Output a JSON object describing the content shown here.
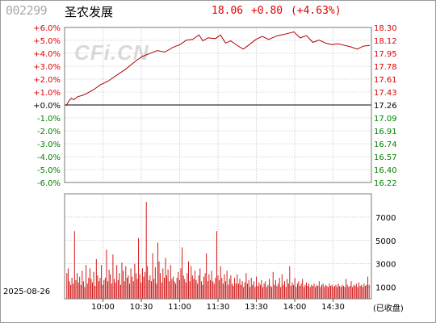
{
  "header": {
    "code": "002299",
    "name": "圣农发展",
    "price": "18.06",
    "change": "+0.80",
    "change_pct": "(+4.63%)"
  },
  "watermark": "CFi.CN",
  "footer": {
    "date": "2025-08-26",
    "closed_label": "(已收盘)"
  },
  "colors": {
    "up": "#e00000",
    "down": "#008000",
    "neutral": "#000000",
    "grid": "#b4b4b4",
    "price_line": "#b00000",
    "volume_bar": "#cc0000"
  },
  "chart_data": [
    {
      "type": "line",
      "title": "",
      "prev_close": 17.26,
      "ylim": [
        16.22,
        18.3
      ],
      "x_ticks": [
        "10:00",
        "10:30",
        "11:00",
        "11:30",
        "13:30",
        "14:00",
        "14:30"
      ],
      "left_ticks": [
        "+6.0%",
        "+5.0%",
        "+4.0%",
        "+3.0%",
        "+2.0%",
        "+1.0%",
        "+0.0%",
        "-1.0%",
        "-2.0%",
        "-3.0%",
        "-4.0%",
        "-5.0%",
        "-6.0%"
      ],
      "right_ticks": [
        "18.30",
        "18.12",
        "17.95",
        "17.78",
        "17.61",
        "17.43",
        "17.26",
        "17.09",
        "16.91",
        "16.74",
        "16.57",
        "16.40",
        "16.22"
      ],
      "grid": true,
      "series": [
        {
          "x": [
            0,
            2,
            4,
            6,
            9,
            13,
            17,
            22,
            27,
            33,
            40,
            47,
            55,
            60,
            66,
            72,
            78,
            84,
            90,
            95,
            100,
            105,
            108,
            112,
            118,
            122,
            126,
            130,
            136,
            140,
            144,
            150,
            155,
            160,
            167,
            173,
            180,
            185,
            190,
            195,
            200,
            205,
            210,
            215,
            220,
            225,
            230,
            235,
            240
          ],
          "values": [
            17.25,
            17.31,
            17.35,
            17.33,
            17.37,
            17.39,
            17.42,
            17.47,
            17.53,
            17.58,
            17.66,
            17.74,
            17.85,
            17.91,
            17.95,
            17.99,
            17.97,
            18.03,
            18.07,
            18.13,
            18.14,
            18.2,
            18.12,
            18.16,
            18.15,
            18.2,
            18.09,
            18.12,
            18.05,
            18.01,
            18.06,
            18.14,
            18.18,
            18.14,
            18.19,
            18.21,
            18.24,
            18.16,
            18.19,
            18.1,
            18.13,
            18.09,
            18.07,
            18.08,
            18.06,
            18.04,
            18.01,
            18.05,
            18.06
          ]
        }
      ]
    },
    {
      "type": "bar",
      "title": "",
      "ylim": [
        0,
        9000
      ],
      "y_ticks": [
        "7000",
        "5000",
        "3000",
        "1000"
      ],
      "y_tick_values": [
        7000,
        5000,
        3000,
        1000
      ],
      "grid": true,
      "series": [
        {
          "values": [
            2200,
            2600,
            1500,
            1200,
            1800,
            1300,
            5800,
            1600,
            2200,
            1400,
            1900,
            1200,
            2400,
            1500,
            1000,
            2900,
            1300,
            1800,
            2600,
            1700,
            1400,
            2300,
            1100,
            3400,
            2000,
            1500,
            1800,
            2900,
            1200,
            1600,
            1800,
            4200,
            1500,
            2500,
            2100,
            1300,
            3800,
            1700,
            1400,
            2900,
            1600,
            2200,
            1200,
            3100,
            2400,
            1500,
            2800,
            1800,
            2000,
            1300,
            2600,
            1900,
            1500,
            3000,
            2200,
            1700,
            5200,
            2100,
            1400,
            2600,
            1900,
            2300,
            8300,
            2800,
            1600,
            2000,
            1500,
            3900,
            1700,
            2700,
            1300,
            4800,
            3200,
            2200,
            1400,
            2600,
            1800,
            3500,
            2000,
            2500,
            1500,
            2900,
            1700,
            1900,
            1500,
            1300,
            1800,
            2300,
            1600,
            2600,
            4400,
            2000,
            1700,
            1400,
            2200,
            3200,
            1500,
            2800,
            2000,
            1700,
            2400,
            1600,
            1300,
            2000,
            2600,
            1500,
            1200,
            1900,
            2200,
            3900,
            1500,
            2100,
            1600,
            2400,
            1500,
            1300,
            1800,
            5800,
            2000,
            1600,
            2800,
            1800,
            1300,
            2100,
            1500,
            2400,
            1200,
            1700,
            2000,
            1300,
            1100,
            1800,
            1300,
            2100,
            1300,
            1700,
            1200,
            1500,
            1000,
            1400,
            2200,
            1300,
            1600,
            1000,
            1800,
            1200,
            1500,
            1000,
            1900,
            1100,
            1400,
            1200,
            1600,
            1000,
            1300,
            1500,
            1000,
            1200,
            1700,
            1100,
            1000,
            2300,
            1200,
            1600,
            1100,
            1300,
            1800,
            1000,
            2100,
            1200,
            1500,
            1000,
            1700,
            1300,
            2800,
            1100,
            1400,
            1200,
            1800,
            1000,
            1300,
            1500,
            1100,
            1300,
            1700,
            1000,
            1200,
            1400,
            1100,
            1300,
            1000,
            1200,
            1100,
            1300,
            1000,
            1200,
            1100,
            1500,
            1000,
            1200,
            1300,
            1000,
            1200,
            1100,
            1000,
            1300,
            1100,
            1200,
            1000,
            1100,
            1200,
            1000,
            1300,
            1100,
            1000,
            1200,
            1100,
            1000,
            1700,
            1200,
            1000,
            1100,
            1500,
            1000,
            1200,
            1100,
            1300,
            1000,
            1400,
            1100,
            1200,
            1000,
            1300,
            1100,
            1200,
            1900,
            1200
          ]
        }
      ]
    }
  ]
}
